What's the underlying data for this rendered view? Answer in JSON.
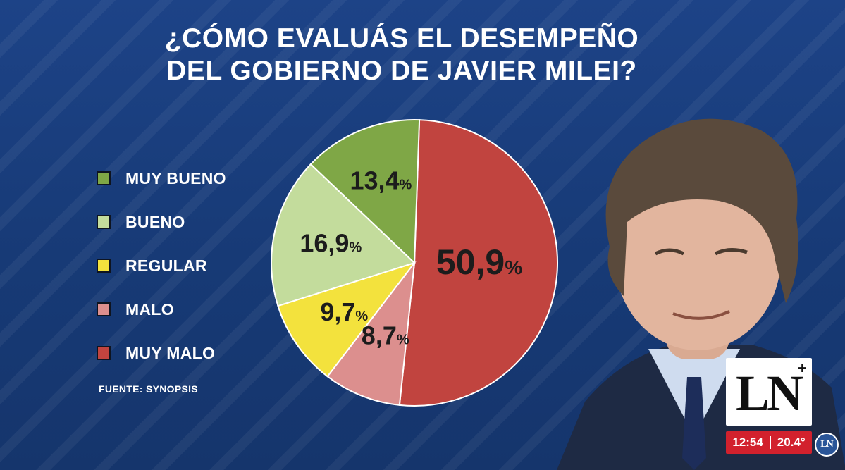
{
  "title_lines": [
    "¿CÓMO EVALUÁS EL DESEMPEÑO",
    "DEL GOBIERNO DE JAVIER MILEI?"
  ],
  "legend": [
    {
      "label": "MUY BUENO",
      "color": "#7fa746"
    },
    {
      "label": "BUENO",
      "color": "#c3dc9c"
    },
    {
      "label": "REGULAR",
      "color": "#f3e23d"
    },
    {
      "label": "MALO",
      "color": "#dc8f8e"
    },
    {
      "label": "MUY MALO",
      "color": "#c1443f"
    }
  ],
  "source": "FUENTE: SYNOPSIS",
  "chart_data": {
    "type": "pie",
    "title": "¿CÓMO EVALUÁS EL DESEMPEÑO DEL GOBIERNO DE JAVIER MILEI?",
    "categories": [
      "MUY MALO",
      "MALO",
      "REGULAR",
      "BUENO",
      "MUY BUENO"
    ],
    "values": [
      50.9,
      8.7,
      9.7,
      16.9,
      13.4
    ],
    "labels": [
      "50,9",
      "8,7",
      "9,7",
      "16,9",
      "13,4"
    ],
    "unit": "%",
    "colors": [
      "#c1443f",
      "#dc8f8e",
      "#f3e23d",
      "#c3dc9c",
      "#7fa746"
    ],
    "legend": "left"
  },
  "broadcast": {
    "logo_text": "LN",
    "logo_plus": "+",
    "time": "12:54",
    "temperature": "20.4°",
    "badge_text": "LN"
  }
}
